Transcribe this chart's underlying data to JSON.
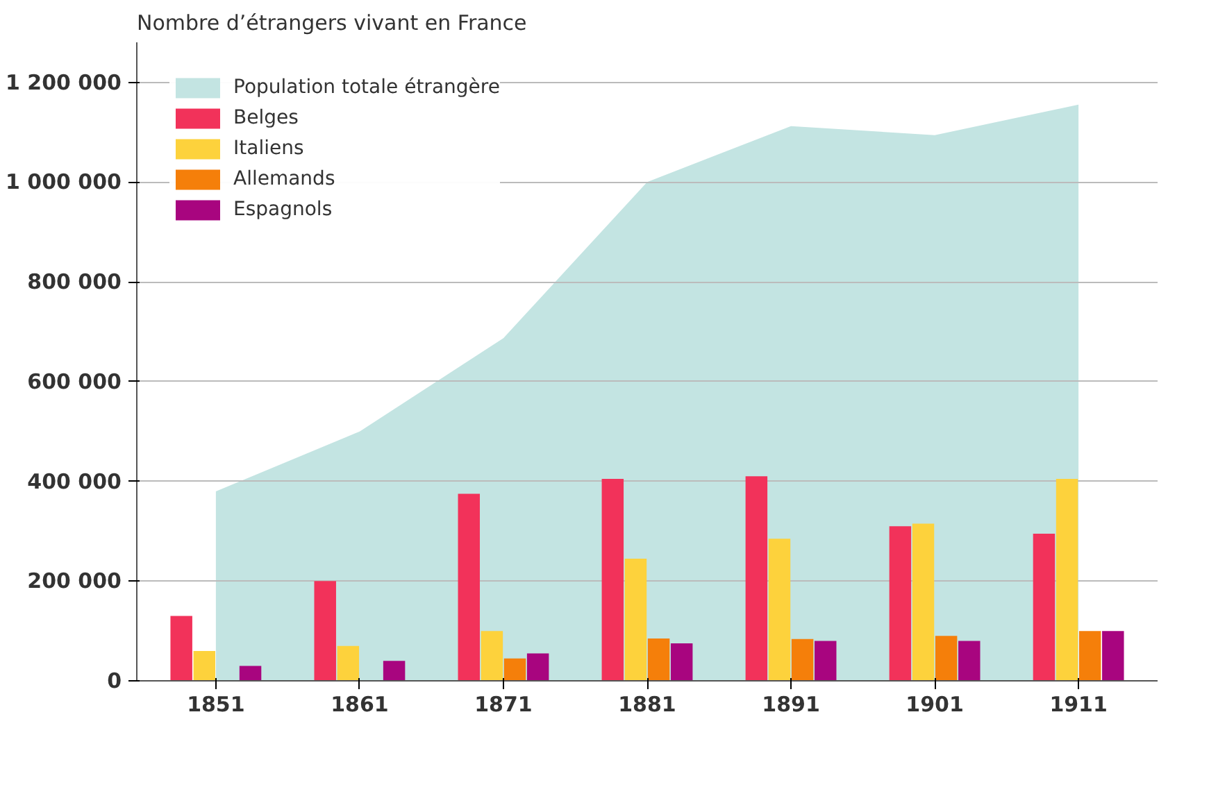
{
  "chart_data": {
    "type": "bar",
    "ylabel": "Nombre d’étrangers vivant en France",
    "categories": [
      "1851",
      "1861",
      "1871",
      "1881",
      "1891",
      "1901",
      "1911"
    ],
    "series": [
      {
        "name": "Population totale étrangère",
        "type": "area",
        "color": "#c3e4e2",
        "values": [
          380000,
          500000,
          687000,
          1000000,
          1112000,
          1094000,
          1155000
        ]
      },
      {
        "name": "Belges",
        "color": "#f2325a",
        "values": [
          130000,
          200000,
          375000,
          405000,
          410000,
          310000,
          295000
        ]
      },
      {
        "name": "Italiens",
        "color": "#fdd23c",
        "values": [
          60000,
          70000,
          100000,
          245000,
          285000,
          315000,
          405000
        ]
      },
      {
        "name": "Allemands",
        "color": "#f57f0a",
        "values": [
          null,
          null,
          45000,
          85000,
          84000,
          90000,
          100000
        ]
      },
      {
        "name": "Espagnols",
        "color": "#a8057f",
        "values": [
          30000,
          40000,
          55000,
          75000,
          80000,
          80000,
          100000
        ]
      }
    ],
    "ylim": [
      0,
      1280000
    ],
    "yticks": [
      0,
      {
        "value": 200000,
        "label": "200 000"
      },
      {
        "value": 400000,
        "label": "400 000"
      },
      {
        "value": 600000,
        "label": "600 000"
      },
      {
        "value": 800000,
        "label": "800 000"
      },
      {
        "value": 1000000,
        "label": "1 000 000"
      },
      {
        "value": 1200000,
        "label": "1 200 000"
      }
    ],
    "grid": "y",
    "legend": "top left"
  }
}
